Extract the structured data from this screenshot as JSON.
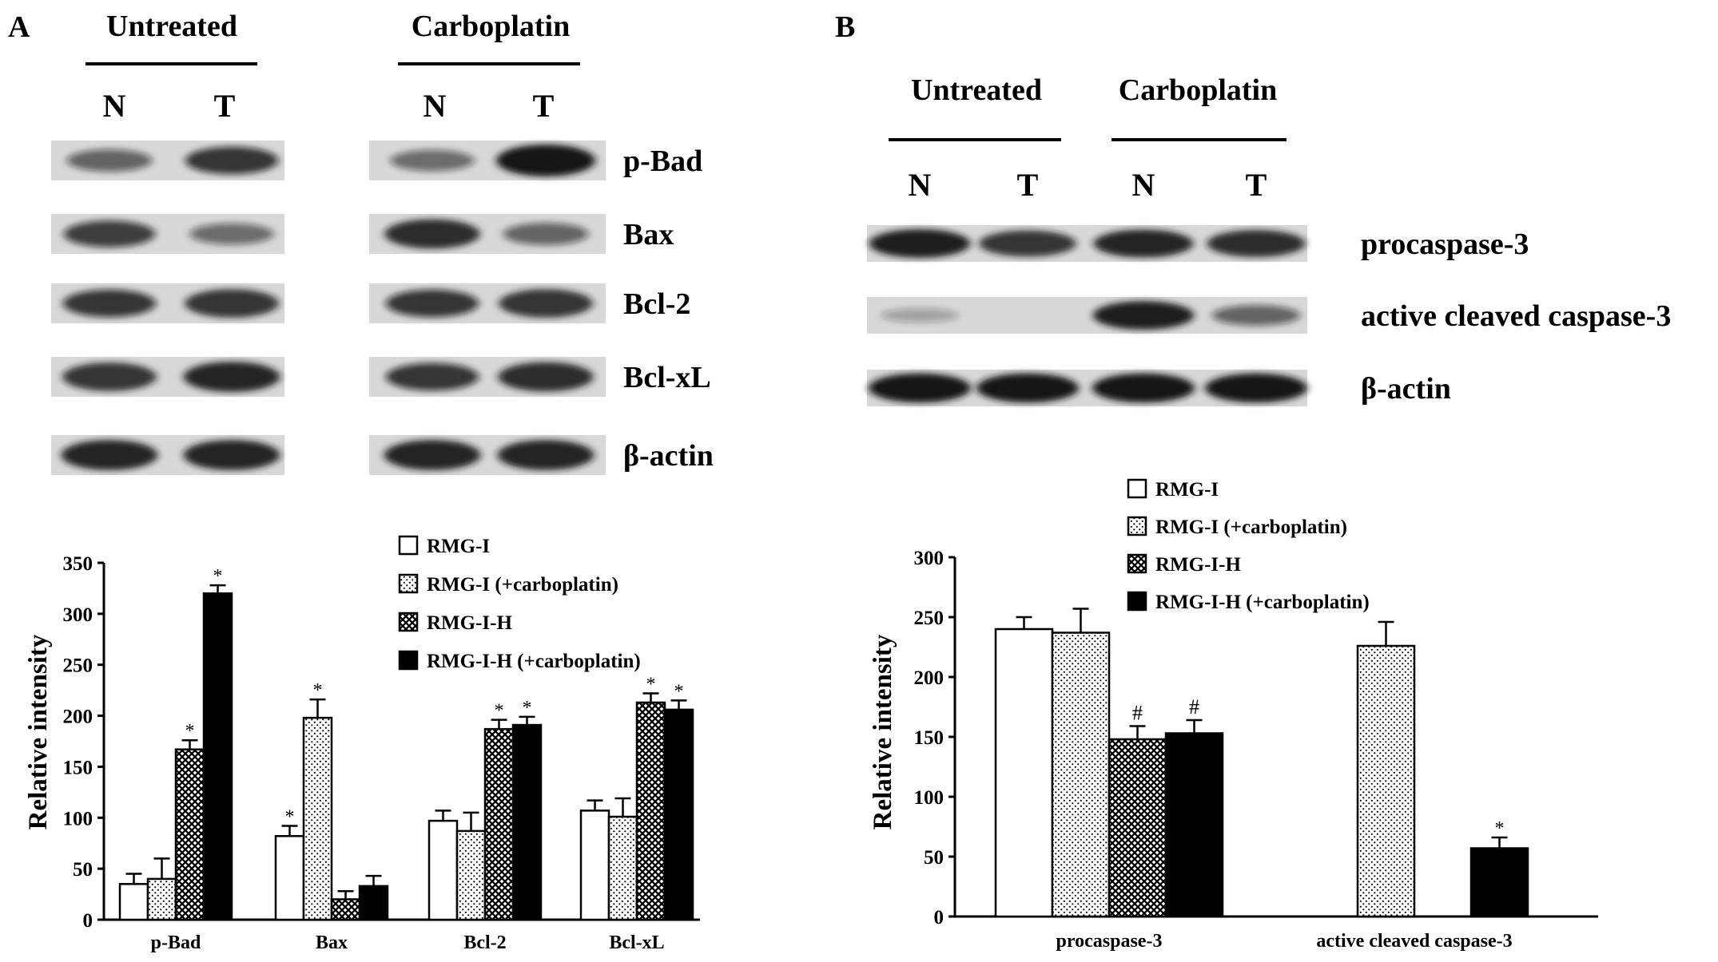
{
  "colors": {
    "ink": "#000000",
    "paper": "#ffffff",
    "blot_band": "#141414",
    "blot_background": "#d8d8d8"
  },
  "panel_a": {
    "letter": "A",
    "group_labels": [
      "Untreated",
      "Carboplatin"
    ],
    "lane_labels": [
      "N",
      "T",
      "N",
      "T"
    ],
    "blot_rows": [
      {
        "label": "p-Bad",
        "intensity": [
          0.45,
          0.75,
          0.4,
          1.0
        ]
      },
      {
        "label": "Bax",
        "intensity": [
          0.7,
          0.4,
          0.85,
          0.45
        ]
      },
      {
        "label": "Bcl-2",
        "intensity": [
          0.75,
          0.8,
          0.75,
          0.8
        ]
      },
      {
        "label": "Bcl-xL",
        "intensity": [
          0.8,
          0.9,
          0.75,
          0.85
        ]
      },
      {
        "label": "β-actin",
        "intensity": [
          0.9,
          0.9,
          0.9,
          0.9
        ]
      }
    ]
  },
  "panel_b": {
    "letter": "B",
    "group_labels": [
      "Untreated",
      "Carboplatin"
    ],
    "lane_labels": [
      "N",
      "T",
      "N",
      "T"
    ],
    "blot_rows": [
      {
        "label": "procaspase-3",
        "intensity": [
          0.95,
          0.8,
          0.9,
          0.85
        ]
      },
      {
        "label": "active cleaved caspase-3",
        "intensity": [
          0.05,
          0.0,
          0.95,
          0.45
        ]
      },
      {
        "label": "β-actin",
        "intensity": [
          1.0,
          1.0,
          1.0,
          1.0
        ]
      }
    ]
  },
  "chart_data": [
    {
      "type": "bar",
      "panel": "A",
      "title": "",
      "xlabel": "",
      "ylabel": "Relative intensity",
      "ylim": [
        0,
        350
      ],
      "yticks": [
        0,
        50,
        100,
        150,
        200,
        250,
        300,
        350
      ],
      "grid": false,
      "legend": "top-right",
      "categories": [
        "p-Bad",
        "Bax",
        "Bcl-2",
        "Bcl-xL"
      ],
      "series": [
        {
          "name": "RMG-I",
          "pattern": "white",
          "values": [
            35,
            82,
            97,
            107
          ],
          "errors": [
            10,
            10,
            10,
            10
          ],
          "marks": [
            "",
            "*",
            "",
            ""
          ]
        },
        {
          "name": "RMG-I (+carboplatin)",
          "pattern": "dots",
          "values": [
            40,
            198,
            87,
            101
          ],
          "errors": [
            20,
            18,
            18,
            18
          ],
          "marks": [
            "",
            "*",
            "",
            ""
          ]
        },
        {
          "name": "RMG-I-H",
          "pattern": "crosshatch",
          "values": [
            167,
            20,
            187,
            213
          ],
          "errors": [
            9,
            8,
            9,
            9
          ],
          "marks": [
            "*",
            "",
            "*",
            "*"
          ]
        },
        {
          "name": "RMG-I-H (+carboplatin)",
          "pattern": "black",
          "values": [
            320,
            33,
            191,
            206
          ],
          "errors": [
            8,
            10,
            8,
            9
          ],
          "marks": [
            "*",
            "",
            "*",
            "*"
          ]
        }
      ]
    },
    {
      "type": "bar",
      "panel": "B",
      "title": "",
      "xlabel": "",
      "ylabel": "Relative intensity",
      "ylim": [
        0,
        300
      ],
      "yticks": [
        0,
        50,
        100,
        150,
        200,
        250,
        300
      ],
      "grid": false,
      "legend": "top-left",
      "categories": [
        "procaspase-3",
        "active cleaved caspase-3"
      ],
      "series": [
        {
          "name": "RMG-I",
          "pattern": "white",
          "values": [
            240,
            0
          ],
          "errors": [
            10,
            0
          ],
          "marks": [
            "",
            ""
          ]
        },
        {
          "name": "RMG-I (+carboplatin)",
          "pattern": "dots",
          "values": [
            237,
            226
          ],
          "errors": [
            20,
            20
          ],
          "marks": [
            "",
            ""
          ]
        },
        {
          "name": "RMG-I-H",
          "pattern": "crosshatch",
          "values": [
            148,
            0
          ],
          "errors": [
            11,
            0
          ],
          "marks": [
            "#",
            ""
          ]
        },
        {
          "name": "RMG-I-H (+carboplatin)",
          "pattern": "black",
          "values": [
            153,
            57
          ],
          "errors": [
            11,
            9
          ],
          "marks": [
            "#",
            "*"
          ]
        }
      ]
    }
  ]
}
